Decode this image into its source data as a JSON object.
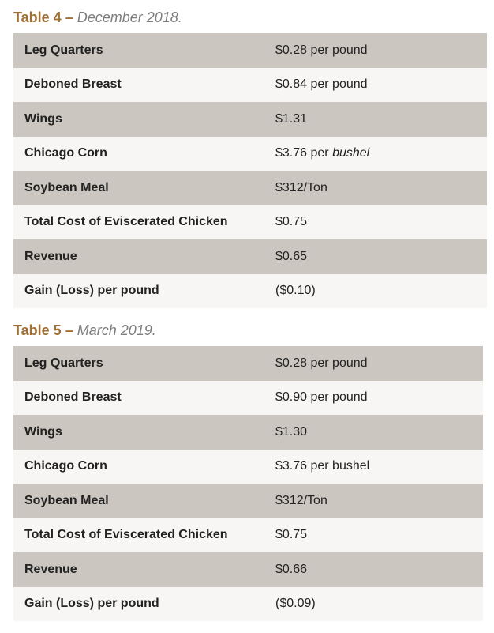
{
  "table4": {
    "label": "Table 4",
    "dash": " – ",
    "date": "December 2018.",
    "rows": [
      {
        "item": "Leg Quarters",
        "value": "$0.28 per pound",
        "value_suffix": ""
      },
      {
        "item": "Deboned Breast",
        "value": "$0.84 per pound",
        "value_suffix": ""
      },
      {
        "item": "Wings",
        "value": "$1.31",
        "value_suffix": ""
      },
      {
        "item": "Chicago Corn",
        "value": "$3.76 per ",
        "value_suffix": "bushel"
      },
      {
        "item": "Soybean Meal",
        "value": "$312/Ton",
        "value_suffix": ""
      },
      {
        "item": "Total Cost of Eviscerated Chicken",
        "value": "$0.75",
        "value_suffix": ""
      },
      {
        "item": "Revenue",
        "value": "$0.65",
        "value_suffix": ""
      },
      {
        "item": "Gain (Loss) per pound",
        "value": "($0.10)",
        "value_suffix": ""
      }
    ]
  },
  "table5": {
    "label": "Table 5",
    "dash": " – ",
    "date": "March 2019.",
    "rows": [
      {
        "item": "Leg Quarters",
        "value": "$0.28 per pound"
      },
      {
        "item": "Deboned Breast",
        "value": "$0.90 per pound"
      },
      {
        "item": "Wings",
        "value": "$1.30"
      },
      {
        "item": "Chicago Corn",
        "value": "$3.76 per bushel"
      },
      {
        "item": "Soybean Meal",
        "value": "$312/Ton"
      },
      {
        "item": "Total Cost of Eviscerated Chicken",
        "value": "$0.75"
      },
      {
        "item": "Revenue",
        "value": "$0.66"
      },
      {
        "item": "Gain (Loss) per pound",
        "value": "($0.09)"
      }
    ]
  },
  "colors": {
    "title_accent": "#a06f33",
    "title_date": "#7d7d7d",
    "row_shaded": "#cbc6bf",
    "row_light": "#f7f6f4"
  }
}
